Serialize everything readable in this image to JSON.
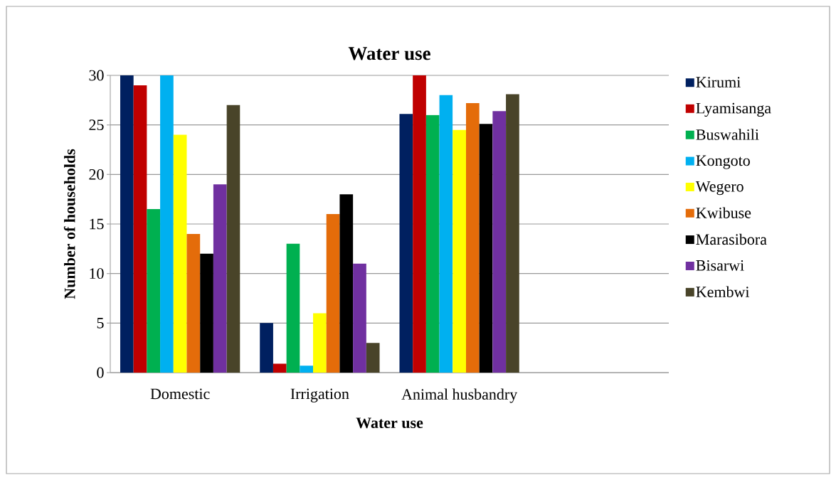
{
  "chart_data": {
    "type": "bar",
    "title": "Water use",
    "xlabel": "Water use",
    "ylabel": "Number of households",
    "categories": [
      "Domestic",
      "Irrigation",
      "Animal husbandry",
      null
    ],
    "series": [
      {
        "name": "Kirumi",
        "color": "#002060",
        "values": [
          30,
          5,
          26.1,
          null
        ]
      },
      {
        "name": "Lyamisanga",
        "color": "#c00000",
        "values": [
          29,
          0.9,
          30,
          null
        ]
      },
      {
        "name": "Buswahili",
        "color": "#00b050",
        "values": [
          16.5,
          13,
          26,
          null
        ]
      },
      {
        "name": "Kongoto",
        "color": "#00b0f0",
        "values": [
          30,
          0.7,
          28,
          null
        ]
      },
      {
        "name": "Wegero",
        "color": "#ffff00",
        "values": [
          24,
          6,
          24.5,
          null
        ]
      },
      {
        "name": "Kwibuse",
        "color": "#e46c0a",
        "values": [
          14,
          16,
          27.2,
          null
        ]
      },
      {
        "name": "Marasibora",
        "color": "#000000",
        "values": [
          12,
          18,
          25.1,
          null
        ]
      },
      {
        "name": "Bisarwi",
        "color": "#7030a0",
        "values": [
          19,
          11,
          26.4,
          null
        ]
      },
      {
        "name": "Kembwi",
        "color": "#494429",
        "values": [
          27,
          3,
          28.1,
          null
        ]
      }
    ],
    "ylim": [
      0,
      30
    ],
    "yticks": [
      0,
      5,
      10,
      15,
      20,
      25,
      30
    ],
    "grid": "y",
    "legend": "right"
  }
}
